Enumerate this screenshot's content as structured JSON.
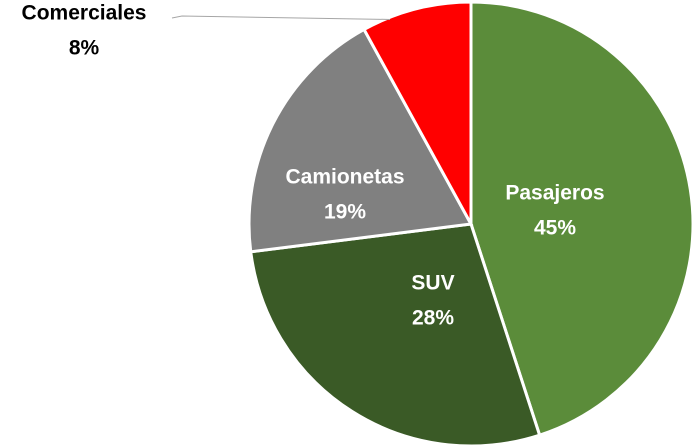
{
  "chart_data": {
    "type": "pie",
    "categories": [
      "Pasajeros",
      "SUV",
      "Camionetas",
      "Comerciales"
    ],
    "values": [
      45,
      28,
      19,
      8
    ],
    "value_labels": [
      "45%",
      "28%",
      "19%",
      "8%"
    ],
    "colors": [
      "#5b8c3a",
      "#3a5a26",
      "#808080",
      "#ff0000"
    ]
  }
}
